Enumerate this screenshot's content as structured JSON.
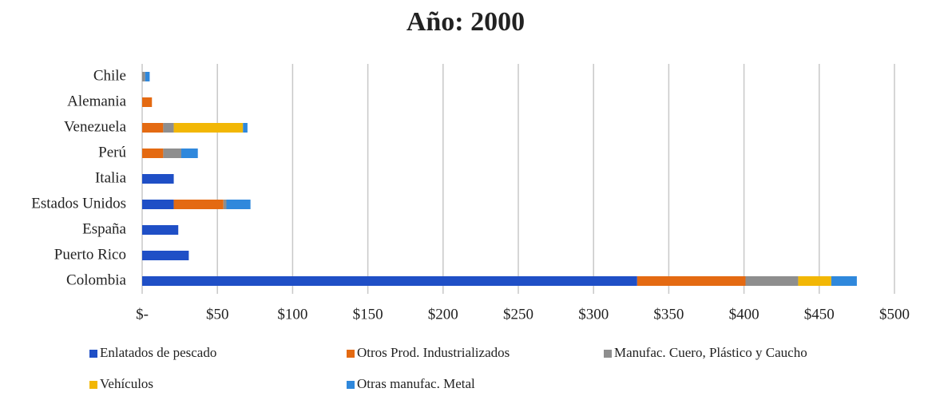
{
  "chart_data": {
    "type": "stacked_barh",
    "title": "Año: 2000",
    "categories": [
      "Chile",
      "Alemania",
      "Venezuela",
      "Perú",
      "Italia",
      "Estados Unidos",
      "España",
      "Puerto Rico",
      "Colombia"
    ],
    "series": [
      {
        "name": "Enlatados de pescado",
        "color": "#1f4fc6",
        "values": [
          0,
          0,
          0,
          0,
          21,
          21,
          24,
          31,
          329
        ]
      },
      {
        "name": "Otros Prod. Industrializados",
        "color": "#e46a12",
        "values": [
          0,
          6.5,
          14,
          14,
          0,
          33,
          0,
          0,
          72
        ]
      },
      {
        "name": "Manufac. Cuero, Plástico y Caucho",
        "color": "#8e8e8e",
        "values": [
          2,
          0,
          7,
          12,
          0,
          2,
          0,
          0,
          35
        ]
      },
      {
        "name": "Vehículos",
        "color": "#f2b705",
        "values": [
          0,
          0,
          46,
          0,
          0,
          0,
          0,
          0,
          22
        ]
      },
      {
        "name": "Otras manufac. Metal",
        "color": "#2f88dc",
        "values": [
          3,
          0,
          3,
          11,
          0,
          16,
          0,
          0,
          17
        ]
      }
    ],
    "xlim": [
      0,
      500
    ],
    "xticks": [
      {
        "value": 0,
        "label": "$-"
      },
      {
        "value": 50,
        "label": "$50"
      },
      {
        "value": 100,
        "label": "$100"
      },
      {
        "value": 150,
        "label": "$150"
      },
      {
        "value": 200,
        "label": "$200"
      },
      {
        "value": 250,
        "label": "$250"
      },
      {
        "value": 300,
        "label": "$300"
      },
      {
        "value": 350,
        "label": "$350"
      },
      {
        "value": 400,
        "label": "$400"
      },
      {
        "value": 450,
        "label": "$450"
      },
      {
        "value": 500,
        "label": "$500"
      }
    ],
    "grid": true,
    "legend": "bottom"
  }
}
